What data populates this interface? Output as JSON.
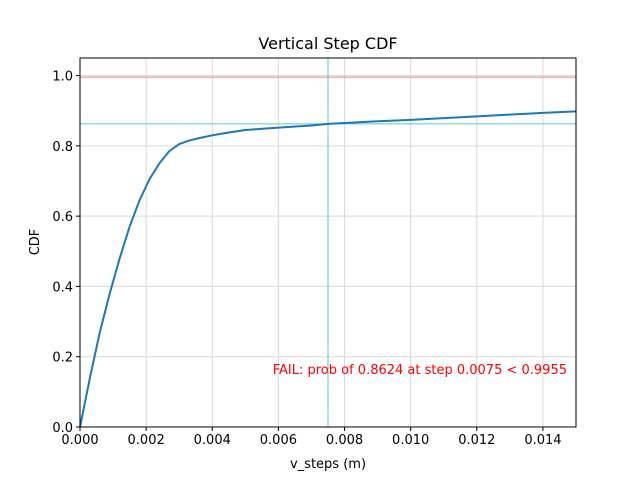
{
  "chart_data": {
    "type": "line",
    "title": "Vertical Step CDF",
    "xlabel": "v_steps (m)",
    "ylabel": "CDF",
    "xlim": [
      0,
      0.015
    ],
    "ylim": [
      0,
      1.05
    ],
    "grid": true,
    "x_ticks": [
      0,
      0.002,
      0.004,
      0.006,
      0.008,
      0.01,
      0.012,
      0.014
    ],
    "x_tick_labels": [
      "0.000",
      "0.002",
      "0.004",
      "0.006",
      "0.008",
      "0.010",
      "0.012",
      "0.014"
    ],
    "y_ticks": [
      0,
      0.2,
      0.4,
      0.6,
      0.8,
      1.0
    ],
    "y_tick_labels": [
      "0.0",
      "0.2",
      "0.4",
      "0.6",
      "0.8",
      "1.0"
    ],
    "series": [
      {
        "color": "#1f77b4",
        "x": [
          0,
          0.0003,
          0.0006,
          0.0009,
          0.0012,
          0.0015,
          0.0018,
          0.0021,
          0.0024,
          0.0027,
          0.003,
          0.0033,
          0.0036,
          0.004,
          0.0045,
          0.005,
          0.006,
          0.007,
          0.0075,
          0.008,
          0.009,
          0.01,
          0.011,
          0.012,
          0.013,
          0.014,
          0.015
        ],
        "y": [
          0,
          0.14,
          0.27,
          0.38,
          0.48,
          0.57,
          0.645,
          0.705,
          0.75,
          0.785,
          0.805,
          0.815,
          0.822,
          0.83,
          0.838,
          0.845,
          0.852,
          0.858,
          0.8624,
          0.865,
          0.87,
          0.874,
          0.879,
          0.884,
          0.889,
          0.894,
          0.898
        ]
      }
    ],
    "reference_lines": [
      {
        "orientation": "horizontal",
        "value": 0.9955,
        "color": "#e8857e"
      },
      {
        "orientation": "horizontal",
        "value": 0.8624,
        "color": "#5cc7c4"
      },
      {
        "orientation": "vertical",
        "value": 0.0075,
        "color": "#5cc7c4"
      }
    ],
    "annotation": {
      "text": "FAIL: prob of 0.8624 at step 0.0075 < 0.9955",
      "color": "#ff0000"
    }
  }
}
